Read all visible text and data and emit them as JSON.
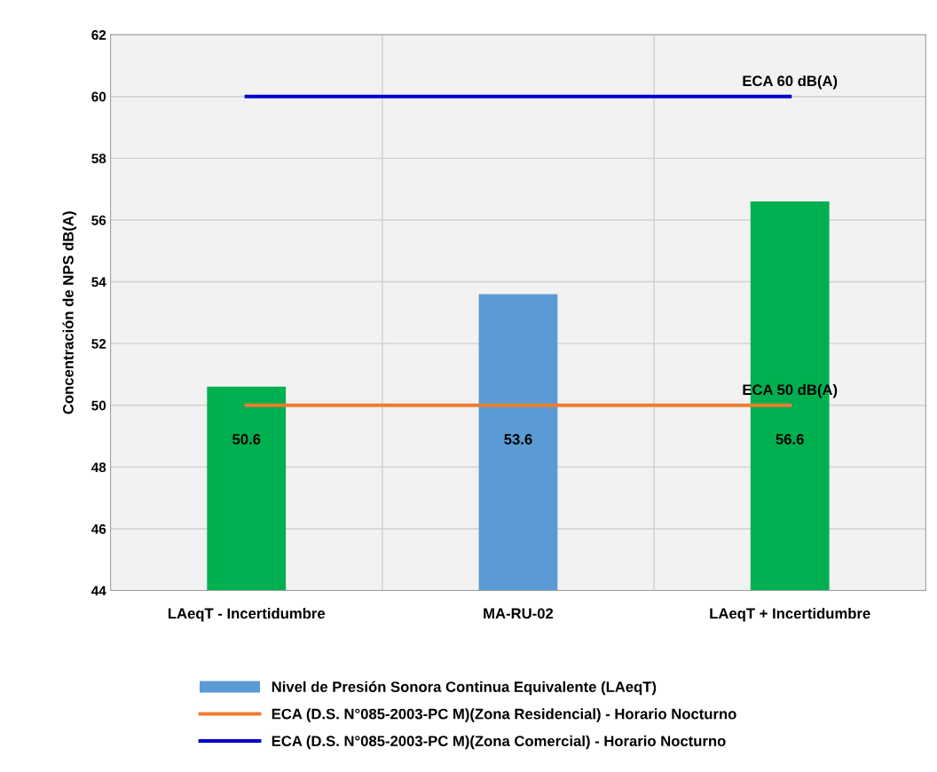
{
  "chart_data": {
    "type": "bar",
    "ylabel": "Concentración de NPS dB(A)",
    "categories": [
      "LAeqT - Incertidumbre",
      "MA-RU-02",
      "LAeqT + Incertidumbre"
    ],
    "series": [
      {
        "name": "Nivel de Presión Sonora Continua Equivalente (LAeqT)",
        "color": "#5b9bd5",
        "colors": [
          "#00b050",
          "#5b9bd5",
          "#00b050"
        ],
        "values": [
          50.6,
          53.6,
          56.6
        ],
        "value_labels": [
          "50.6",
          "53.6",
          "56.6"
        ]
      },
      {
        "name": "ECA (D.S. N°085-2003-PC M)(Zona Residencial) - Horario Nocturno",
        "type": "line",
        "color": "#ed7d31",
        "values": [
          50,
          50,
          50
        ]
      },
      {
        "name": "ECA (D.S. N°085-2003-PC M)(Zona Comercial) - Horario Nocturno",
        "type": "line",
        "color": "#0000cc",
        "values": [
          60,
          60,
          60
        ]
      }
    ],
    "annotations": [
      {
        "text": "ECA 60 dB(A)",
        "x": "LAeqT + Incertidumbre",
        "y": 60
      },
      {
        "text": "ECA 50 dB(A)",
        "x": "LAeqT + Incertidumbre",
        "y": 50
      }
    ],
    "ylim": [
      44,
      62
    ],
    "yticks": [
      44,
      46,
      48,
      50,
      52,
      54,
      56,
      58,
      60,
      62
    ],
    "grid": true,
    "legend": "bottom",
    "marker": "none"
  }
}
